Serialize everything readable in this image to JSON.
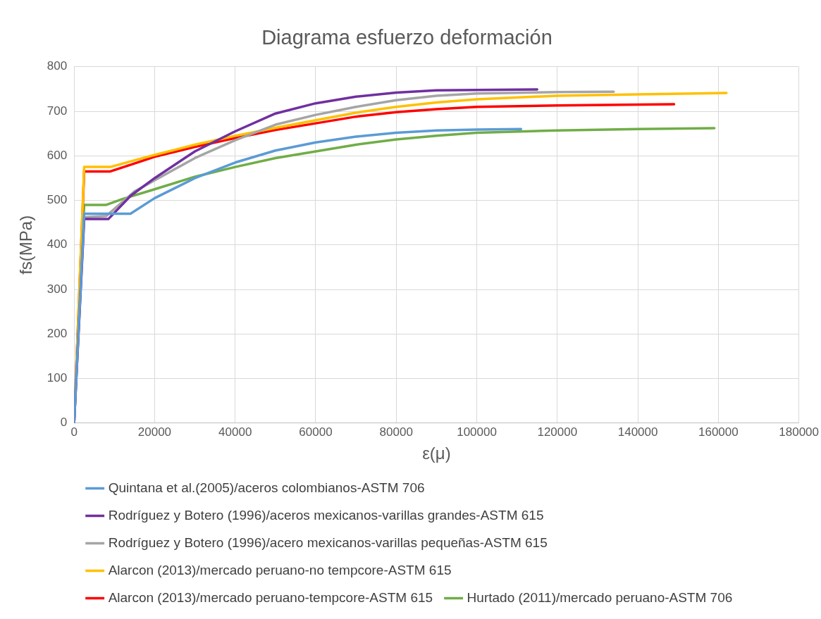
{
  "chart_data": {
    "type": "line",
    "title": "Diagrama esfuerzo deformación",
    "xlabel": "ε(μ)",
    "ylabel": "fs(MPa)",
    "xlim": [
      0,
      180000
    ],
    "xticks": [
      0,
      20000,
      40000,
      60000,
      80000,
      100000,
      120000,
      140000,
      160000,
      180000
    ],
    "ylim": [
      0,
      800
    ],
    "yticks": [
      0,
      100,
      200,
      300,
      400,
      500,
      600,
      700,
      800
    ],
    "grid": true,
    "legend": "bottom",
    "marker": "none",
    "line_style": "solid",
    "series": [
      {
        "name": "Quintana et al.(2005)/aceros colombianos-ASTM 706",
        "color": "#5b9bd5",
        "x": [
          0,
          2500,
          14000,
          20000,
          30000,
          40000,
          50000,
          60000,
          70000,
          80000,
          90000,
          100000,
          111000
        ],
        "values": [
          0,
          470,
          470,
          505,
          550,
          585,
          612,
          630,
          643,
          652,
          657,
          659,
          660
        ]
      },
      {
        "name": "Rodríguez y Botero (1996)/aceros mexicanos-varillas grandes-ASTM 615",
        "color": "#7030a0",
        "x": [
          0,
          2500,
          8500,
          14000,
          20000,
          30000,
          40000,
          50000,
          60000,
          70000,
          80000,
          90000,
          100000,
          115000
        ],
        "values": [
          0,
          458,
          458,
          510,
          550,
          610,
          655,
          695,
          718,
          733,
          742,
          747,
          748,
          749
        ]
      },
      {
        "name": "Rodríguez y Botero (1996)/acero mexicanos-varillas pequeñas-ASTM 615",
        "color": "#a5a5a5",
        "x": [
          0,
          2500,
          8000,
          15000,
          20000,
          30000,
          40000,
          50000,
          60000,
          70000,
          80000,
          90000,
          100000,
          120000,
          134000
        ],
        "values": [
          0,
          462,
          465,
          520,
          545,
          595,
          635,
          670,
          692,
          710,
          725,
          735,
          740,
          743,
          744
        ]
      },
      {
        "name": "Alarcon (2013)/mercado peruano-no tempcore-ASTM 615",
        "color": "#ffc000",
        "x": [
          0,
          2500,
          9000,
          15000,
          20000,
          30000,
          40000,
          50000,
          60000,
          70000,
          80000,
          90000,
          100000,
          120000,
          140000,
          162000
        ],
        "values": [
          0,
          575,
          575,
          590,
          602,
          625,
          645,
          663,
          680,
          697,
          710,
          720,
          727,
          735,
          738,
          741
        ]
      },
      {
        "name": "Alarcon (2013)/mercado peruano-tempcore-ASTM 615",
        "color": "#ff0000",
        "x": [
          0,
          2500,
          9000,
          15000,
          20000,
          30000,
          40000,
          50000,
          60000,
          70000,
          80000,
          90000,
          100000,
          120000,
          149000
        ],
        "values": [
          0,
          565,
          565,
          583,
          598,
          620,
          640,
          658,
          673,
          688,
          698,
          705,
          710,
          713,
          716
        ]
      },
      {
        "name": "Hurtado (2011)/mercado peruano-ASTM 706",
        "color": "#70ad47",
        "x": [
          0,
          2500,
          8000,
          12000,
          20000,
          30000,
          40000,
          50000,
          60000,
          70000,
          80000,
          90000,
          100000,
          120000,
          140000,
          159000
        ],
        "values": [
          0,
          490,
          490,
          503,
          525,
          553,
          575,
          595,
          610,
          625,
          637,
          645,
          652,
          657,
          660,
          662
        ]
      }
    ]
  }
}
